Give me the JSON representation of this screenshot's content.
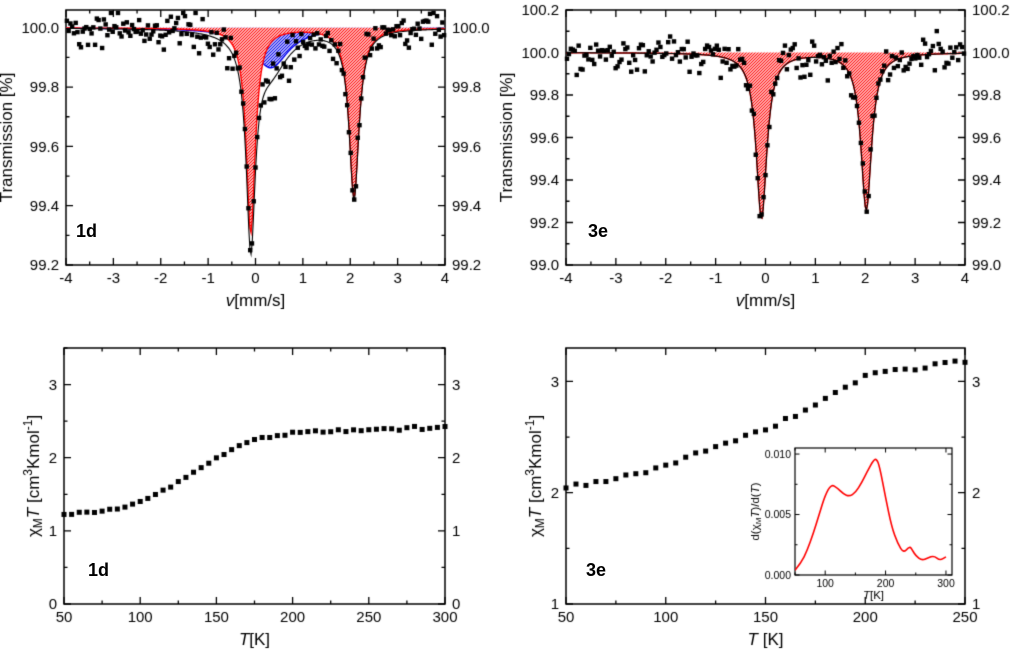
{
  "figure": {
    "background": "#ffffff"
  },
  "panel_labels": {
    "top_left": "1d",
    "top_right": "3e",
    "bottom_left": "1d",
    "bottom_right": "3e"
  },
  "chart_data": [
    {
      "id": "moessbauer-1d",
      "type": "scatter",
      "label": "1d",
      "xlabel_segments": [
        {
          "t": "v",
          "style": "italic"
        },
        {
          "t": "[mm/s]"
        }
      ],
      "ylabel_segments": [
        {
          "t": "Transmission [%]"
        }
      ],
      "xlim": [
        -4,
        4
      ],
      "ylim": [
        99.2,
        100.06
      ],
      "xticks": [
        -4,
        -3,
        -2,
        -1,
        0,
        1,
        2,
        3,
        4
      ],
      "xtick_labels": [
        "-4",
        "-3",
        "-2",
        "-1",
        "0",
        "1",
        "2",
        "3",
        "4"
      ],
      "xtick_minor": 0.5,
      "yticks": [
        99.2,
        99.4,
        99.6,
        99.8,
        100.0
      ],
      "ytick_labels": [
        "99.2",
        "99.4",
        "99.6",
        "99.8",
        "100.0"
      ],
      "ytick_minor": 0.1,
      "mirror_y_labels": true,
      "baseline": 100.0,
      "noise_sigma": 0.032,
      "n_points": 215,
      "seed": 42,
      "point_color": "#000000",
      "envelope_color": "#000000",
      "components": [
        {
          "name": "component-blue",
          "color": "#0000ee",
          "peaks": [
            {
              "center": 0.32,
              "depth": 0.135,
              "hwhm": 0.45
            }
          ]
        },
        {
          "name": "component-red",
          "color": "#ff0000",
          "peaks": [
            {
              "center": -0.1,
              "depth": 0.69,
              "hwhm": 0.115
            },
            {
              "center": 2.08,
              "depth": 0.57,
              "hwhm": 0.125
            }
          ]
        }
      ]
    },
    {
      "id": "moessbauer-3e",
      "type": "scatter",
      "label": "3e",
      "xlabel_segments": [
        {
          "t": "v",
          "style": "italic"
        },
        {
          "t": "[mm/s]"
        }
      ],
      "ylabel_segments": [
        {
          "t": "Transmission [%]"
        }
      ],
      "xlim": [
        -4,
        4
      ],
      "ylim": [
        99.0,
        100.2
      ],
      "xticks": [
        -4,
        -3,
        -2,
        -1,
        0,
        1,
        2,
        3,
        4
      ],
      "xtick_labels": [
        "-4",
        "-3",
        "-2",
        "-1",
        "0",
        "1",
        "2",
        "3",
        "4"
      ],
      "xtick_minor": 0.5,
      "yticks": [
        99.0,
        99.2,
        99.4,
        99.6,
        99.8,
        100.0,
        100.2
      ],
      "ytick_labels": [
        "99.0",
        "99.2",
        "99.4",
        "99.6",
        "99.8",
        "100.0",
        "100.2"
      ],
      "ytick_minor": 0.1,
      "mirror_y_labels": true,
      "baseline": 100.0,
      "noise_sigma": 0.042,
      "n_points": 205,
      "seed": 77,
      "point_color": "#000000",
      "envelope_color": "#000000",
      "components": [
        {
          "name": "component-red",
          "color": "#ff0000",
          "peaks": [
            {
              "center": -0.08,
              "depth": 0.78,
              "hwhm": 0.13
            },
            {
              "center": 2.02,
              "depth": 0.74,
              "hwhm": 0.13
            }
          ]
        }
      ]
    },
    {
      "id": "chiT-1d",
      "type": "scatter",
      "label": "1d",
      "xlabel_segments": [
        {
          "t": "T",
          "style": "italic"
        },
        {
          "t": "[K]"
        }
      ],
      "ylabel_segments": [
        {
          "t": "χ"
        },
        {
          "t": "M",
          "style": "sub"
        },
        {
          "t": "T",
          "style": "italic"
        },
        {
          "t": " [cm"
        },
        {
          "t": "3",
          "style": "sup"
        },
        {
          "t": "Kmol"
        },
        {
          "t": "-1",
          "style": "sup"
        },
        {
          "t": "]"
        }
      ],
      "xlim": [
        50,
        300
      ],
      "ylim": [
        0,
        3.5
      ],
      "xticks": [
        50,
        100,
        150,
        200,
        250,
        300
      ],
      "xtick_labels": [
        "50",
        "100",
        "150",
        "200",
        "250",
        "300"
      ],
      "xtick_minor": 25,
      "yticks": [
        0,
        1,
        2,
        3
      ],
      "ytick_labels": [
        "0",
        "1",
        "2",
        "3"
      ],
      "ytick_minor": 0.5,
      "mirror_y_labels": true,
      "seed": 5,
      "T": [
        50,
        55,
        60,
        65,
        70,
        75,
        80,
        85,
        90,
        95,
        100,
        105,
        110,
        115,
        120,
        125,
        130,
        135,
        140,
        145,
        150,
        155,
        160,
        165,
        170,
        175,
        180,
        185,
        190,
        195,
        200,
        205,
        210,
        215,
        220,
        225,
        230,
        235,
        240,
        245,
        250,
        255,
        260,
        265,
        270,
        275,
        280,
        285,
        290,
        295,
        300
      ],
      "chiT": [
        1.22,
        1.23,
        1.24,
        1.25,
        1.26,
        1.27,
        1.29,
        1.31,
        1.34,
        1.37,
        1.4,
        1.44,
        1.49,
        1.54,
        1.6,
        1.67,
        1.73,
        1.8,
        1.87,
        1.93,
        2.0,
        2.06,
        2.11,
        2.16,
        2.2,
        2.23,
        2.26,
        2.29,
        2.31,
        2.33,
        2.34,
        2.35,
        2.35,
        2.36,
        2.36,
        2.37,
        2.37,
        2.37,
        2.38,
        2.38,
        2.38,
        2.39,
        2.39,
        2.4,
        2.4,
        2.4,
        2.41,
        2.41,
        2.41,
        2.42,
        2.42
      ]
    },
    {
      "id": "chiT-3e",
      "type": "scatter",
      "label": "3e",
      "xlabel_segments": [
        {
          "t": "T",
          "style": "italic"
        },
        {
          "t": " [K]"
        }
      ],
      "ylabel_segments": [
        {
          "t": "χ"
        },
        {
          "t": "M",
          "style": "sub"
        },
        {
          "t": "T",
          "style": "italic"
        },
        {
          "t": " [cm"
        },
        {
          "t": "3",
          "style": "sup"
        },
        {
          "t": "Kmol"
        },
        {
          "t": "-1",
          "style": "sup"
        },
        {
          "t": "]"
        }
      ],
      "xlim": [
        50,
        250
      ],
      "ylim": [
        1,
        3.3
      ],
      "xticks": [
        50,
        100,
        150,
        200,
        250
      ],
      "xtick_labels": [
        "50",
        "100",
        "150",
        "200",
        "250"
      ],
      "xtick_minor": 25,
      "yticks": [
        1,
        2,
        3
      ],
      "ytick_labels": [
        "1",
        "2",
        "3"
      ],
      "ytick_minor": 0.5,
      "mirror_y_labels": true,
      "seed": 9,
      "T": [
        50,
        55,
        60,
        65,
        70,
        75,
        80,
        85,
        90,
        95,
        100,
        105,
        110,
        115,
        120,
        125,
        130,
        135,
        140,
        145,
        150,
        155,
        160,
        165,
        170,
        175,
        180,
        185,
        190,
        195,
        200,
        205,
        210,
        215,
        220,
        225,
        230,
        235,
        240,
        245,
        250
      ],
      "chiT": [
        2.05,
        2.06,
        2.07,
        2.09,
        2.1,
        2.12,
        2.14,
        2.17,
        2.19,
        2.22,
        2.25,
        2.28,
        2.32,
        2.35,
        2.38,
        2.41,
        2.44,
        2.47,
        2.5,
        2.53,
        2.56,
        2.6,
        2.64,
        2.68,
        2.73,
        2.78,
        2.84,
        2.9,
        2.95,
        3.0,
        3.04,
        3.07,
        3.09,
        3.11,
        3.12,
        3.13,
        3.14,
        3.15,
        3.16,
        3.16,
        3.17
      ]
    },
    {
      "id": "derivative-inset-3e",
      "type": "line",
      "color": "#ff0000",
      "xlabel_segments": [
        {
          "t": "T",
          "style": "italic"
        },
        {
          "t": "[K]"
        }
      ],
      "ylabel_segments": [
        {
          "t": "d("
        },
        {
          "t": "χ"
        },
        {
          "t": "M",
          "style": "sub"
        },
        {
          "t": "T",
          "style": "italic"
        },
        {
          "t": ")/d("
        },
        {
          "t": "T",
          "style": "italic"
        },
        {
          "t": ")"
        }
      ],
      "xlim": [
        50,
        310
      ],
      "ylim": [
        0,
        0.0105
      ],
      "xticks": [
        100,
        200,
        300
      ],
      "xtick_labels": [
        "100",
        "200",
        "300"
      ],
      "xtick_minor": 50,
      "yticks": [
        0,
        0.005,
        0.01
      ],
      "ytick_labels": [
        "0.000",
        "0.005",
        "0.010"
      ],
      "ytick_minor": 0.0025,
      "mirror_y_labels": false,
      "T": [
        50,
        60,
        70,
        80,
        90,
        100,
        110,
        120,
        130,
        140,
        150,
        160,
        170,
        180,
        185,
        190,
        200,
        210,
        220,
        230,
        240,
        245,
        250,
        260,
        270,
        280,
        290,
        300
      ],
      "dchiT": [
        0.0004,
        0.001,
        0.002,
        0.0034,
        0.005,
        0.0066,
        0.0075,
        0.0072,
        0.0067,
        0.0065,
        0.0068,
        0.0076,
        0.0086,
        0.0095,
        0.0096,
        0.009,
        0.0064,
        0.004,
        0.0026,
        0.0018,
        0.0024,
        0.002,
        0.0016,
        0.0012,
        0.0014,
        0.0016,
        0.0012,
        0.0015
      ]
    }
  ]
}
